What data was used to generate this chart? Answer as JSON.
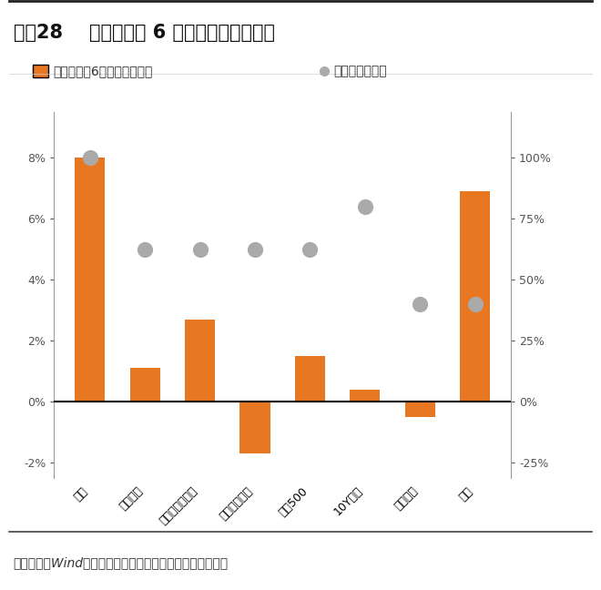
{
  "title_prefix": "图表28",
  "title_main": "降息开启后 6 个月内黄金明显占优",
  "categories": [
    "黄金",
    "发达市场",
    "道琼斯工业指数",
    "纳斯达克指数",
    "标普500",
    "10Y美债",
    "美元指数",
    "原油"
  ],
  "bar_values": [
    8.0,
    1.1,
    2.7,
    -1.7,
    1.5,
    0.4,
    -0.5,
    6.9
  ],
  "dot_values": [
    100.0,
    62.5,
    62.5,
    62.5,
    62.5,
    80.0,
    40.0,
    40.0
  ],
  "bar_color": "#E87722",
  "dot_color": "#AAAAAA",
  "left_ylim": [
    -2.5,
    9.5
  ],
  "right_ylim": [
    -31.25,
    118.75
  ],
  "left_yticks": [
    -2,
    0,
    2,
    4,
    6,
    8
  ],
  "right_yticks": [
    -25,
    0,
    25,
    50,
    75,
    100
  ],
  "legend_bar_label": "开启降息后6个月平均收益率",
  "legend_dot_label": "历史胜率（右）",
  "footer": "资料来源：Wind，平安证券研究所；注：美债是绝对值变动",
  "title_fontsize": 15,
  "label_fontsize": 10,
  "tick_fontsize": 9,
  "footer_fontsize": 10,
  "background_color": "#FFFFFF"
}
